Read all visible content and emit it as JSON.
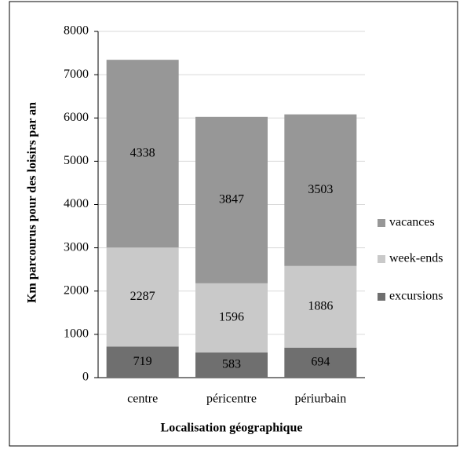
{
  "chart_data": {
    "type": "stacked_bar",
    "xlabel": "Localisation géographique",
    "ylabel": "Km parcourus pour des loisirs par an",
    "categories": [
      "centre",
      "péricentre",
      "périurbain"
    ],
    "series": [
      {
        "name": "excursions",
        "color": "#6f6f6f",
        "values": [
          719,
          583,
          694
        ]
      },
      {
        "name": "week-ends",
        "color": "#c9c9c9",
        "values": [
          2287,
          1596,
          1886
        ]
      },
      {
        "name": "vacances",
        "color": "#979797",
        "values": [
          4338,
          3847,
          3503
        ]
      }
    ],
    "ylim": [
      0,
      8000
    ],
    "yticks": [
      0,
      1000,
      2000,
      3000,
      4000,
      5000,
      6000,
      7000,
      8000
    ],
    "grid": true,
    "legend": "right"
  }
}
